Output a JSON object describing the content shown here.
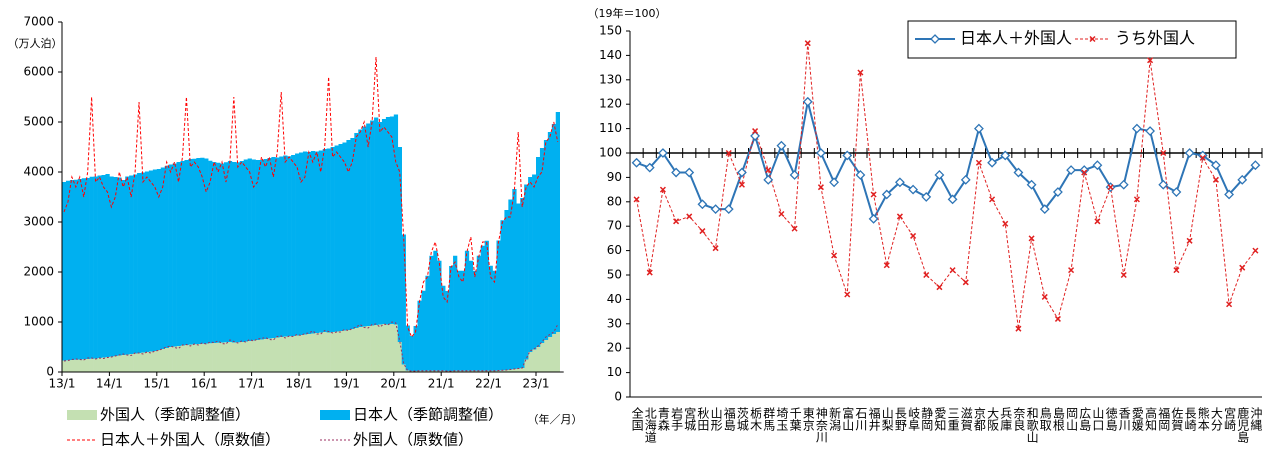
{
  "chart_data": [
    {
      "type": "bar",
      "y_unit": "（万人泊）",
      "x_label": "（年／月）",
      "ylim": [
        0,
        7000
      ],
      "yticks": [
        0,
        1000,
        2000,
        3000,
        4000,
        5000,
        6000,
        7000
      ],
      "categories": [
        "13/1",
        null,
        null,
        null,
        null,
        null,
        null,
        null,
        null,
        null,
        null,
        null,
        "14/1",
        null,
        null,
        null,
        null,
        null,
        null,
        null,
        null,
        null,
        null,
        null,
        "15/1",
        null,
        null,
        null,
        null,
        null,
        null,
        null,
        null,
        null,
        null,
        null,
        "16/1",
        null,
        null,
        null,
        null,
        null,
        null,
        null,
        null,
        null,
        null,
        null,
        "17/1",
        null,
        null,
        null,
        null,
        null,
        null,
        null,
        null,
        null,
        null,
        null,
        "18/1",
        null,
        null,
        null,
        null,
        null,
        null,
        null,
        null,
        null,
        null,
        null,
        "19/1",
        null,
        null,
        null,
        null,
        null,
        null,
        null,
        null,
        null,
        null,
        null,
        "20/1",
        null,
        null,
        null,
        null,
        null,
        null,
        null,
        null,
        null,
        null,
        null,
        "21/1",
        null,
        null,
        null,
        null,
        null,
        null,
        null,
        null,
        null,
        null,
        null,
        "22/1",
        null,
        null,
        null,
        null,
        null,
        null,
        null,
        null,
        null,
        null,
        null,
        "23/1",
        null,
        null,
        null,
        null,
        null
      ],
      "series": [
        {
          "name": "外国人（季節調整値）",
          "kind": "bar",
          "color": "#c4e0b2",
          "values": [
            230,
            235,
            240,
            245,
            250,
            255,
            260,
            265,
            270,
            280,
            290,
            300,
            310,
            320,
            330,
            340,
            350,
            360,
            370,
            380,
            390,
            400,
            410,
            420,
            440,
            460,
            480,
            500,
            510,
            520,
            530,
            540,
            550,
            555,
            560,
            565,
            570,
            575,
            580,
            585,
            590,
            595,
            600,
            590,
            595,
            600,
            610,
            620,
            630,
            640,
            650,
            660,
            670,
            680,
            690,
            700,
            710,
            715,
            720,
            730,
            740,
            750,
            760,
            770,
            780,
            790,
            800,
            790,
            800,
            810,
            820,
            830,
            840,
            860,
            880,
            900,
            910,
            920,
            930,
            940,
            950,
            960,
            950,
            960,
            950,
            600,
            150,
            30,
            20,
            20,
            25,
            25,
            25,
            25,
            25,
            25,
            25,
            20,
            20,
            25,
            25,
            25,
            25,
            25,
            25,
            25,
            25,
            25,
            25,
            25,
            30,
            35,
            40,
            50,
            60,
            70,
            80,
            250,
            400,
            450,
            500,
            580,
            640,
            700,
            760,
            800
          ]
        },
        {
          "name": "日本人（季節調整値）",
          "kind": "bar",
          "color": "#00b0f0",
          "values": [
            3570,
            3590,
            3600,
            3600,
            3610,
            3620,
            3620,
            3640,
            3640,
            3650,
            3650,
            3660,
            3600,
            3580,
            3560,
            3500,
            3560,
            3570,
            3580,
            3600,
            3600,
            3610,
            3620,
            3630,
            3620,
            3630,
            3640,
            3650,
            3660,
            3680,
            3690,
            3700,
            3710,
            3710,
            3720,
            3720,
            3700,
            3650,
            3620,
            3600,
            3580,
            3600,
            3620,
            3610,
            3600,
            3620,
            3640,
            3650,
            3620,
            3600,
            3590,
            3600,
            3610,
            3620,
            3600,
            3610,
            3620,
            3600,
            3620,
            3640,
            3650,
            3660,
            3640,
            3650,
            3630,
            3640,
            3660,
            3680,
            3700,
            3720,
            3740,
            3760,
            3800,
            3820,
            3900,
            3950,
            4000,
            4050,
            4100,
            4150,
            4050,
            4100,
            4150,
            4150,
            4200,
            3900,
            2600,
            900,
            700,
            900,
            1400,
            1600,
            1900,
            2300,
            2400,
            2200,
            1700,
            1600,
            2100,
            2300,
            2000,
            2000,
            2400,
            2200,
            2000,
            2300,
            2500,
            2600,
            2100,
            2000,
            2600,
            3000,
            3200,
            3400,
            3600,
            3300,
            3400,
            3500,
            3500,
            3500,
            3800,
            3900,
            4000,
            4100,
            4200,
            4400
          ]
        },
        {
          "name": "日本人＋外国人（原数値）",
          "kind": "line",
          "color": "#ff0000",
          "dash": "3,2",
          "values": [
            3200,
            3400,
            3900,
            3700,
            3900,
            3500,
            4000,
            5500,
            3800,
            3900,
            3700,
            3600,
            3300,
            3500,
            4000,
            3700,
            3900,
            3500,
            4000,
            5400,
            3800,
            3900,
            3800,
            3700,
            3500,
            3700,
            4200,
            4000,
            4200,
            3800,
            4300,
            5500,
            4100,
            4200,
            4100,
            3900,
            3600,
            3800,
            4200,
            4000,
            4200,
            3800,
            4200,
            5500,
            4100,
            4200,
            4100,
            4000,
            3700,
            3800,
            4300,
            4100,
            4300,
            3900,
            4400,
            5600,
            4200,
            4300,
            4200,
            4100,
            3800,
            3900,
            4400,
            4200,
            4400,
            4000,
            4500,
            5900,
            4300,
            4400,
            4300,
            4200,
            4000,
            4200,
            4700,
            4800,
            5000,
            4500,
            5000,
            6300,
            4800,
            4900,
            4800,
            4700,
            4200,
            4000,
            2700,
            900,
            700,
            800,
            1400,
            1800,
            1900,
            2400,
            2600,
            2200,
            1500,
            1400,
            2100,
            2200,
            1900,
            1800,
            2400,
            2700,
            1900,
            2300,
            2600,
            2600,
            1900,
            1800,
            2600,
            3000,
            3100,
            3100,
            3600,
            4800,
            3300,
            3700,
            3800,
            3700,
            3900,
            4000,
            4600,
            4700,
            5000,
            4600
          ]
        },
        {
          "name": "外国人（原数値）",
          "kind": "line",
          "color": "#9b2d5f",
          "dash": "2,2",
          "values": [
            220,
            230,
            250,
            260,
            250,
            240,
            280,
            280,
            260,
            280,
            270,
            290,
            300,
            320,
            340,
            360,
            340,
            330,
            380,
            380,
            360,
            400,
            380,
            420,
            430,
            470,
            500,
            520,
            490,
            470,
            540,
            550,
            520,
            560,
            540,
            580,
            560,
            600,
            590,
            620,
            570,
            560,
            640,
            610,
            580,
            620,
            600,
            650,
            620,
            660,
            670,
            690,
            650,
            640,
            710,
            720,
            680,
            720,
            710,
            750,
            730,
            770,
            780,
            820,
            760,
            760,
            830,
            810,
            780,
            800,
            800,
            850,
            830,
            870,
            900,
            950,
            890,
            880,
            950,
            960,
            900,
            960,
            940,
            1000,
            980,
            620,
            170,
            30,
            20,
            20,
            25,
            25,
            25,
            25,
            25,
            25,
            25,
            20,
            20,
            25,
            25,
            25,
            25,
            25,
            25,
            25,
            25,
            25,
            25,
            25,
            30,
            35,
            40,
            50,
            60,
            70,
            80,
            260,
            420,
            460,
            520,
            600,
            700,
            750,
            800,
            950
          ]
        }
      ]
    },
    {
      "type": "line",
      "y_unit": "（19年＝100）",
      "ylim": [
        0,
        150
      ],
      "yticks": [
        0,
        10,
        20,
        30,
        40,
        50,
        60,
        70,
        80,
        90,
        100,
        110,
        120,
        130,
        140,
        150
      ],
      "reference_line": 100,
      "legend": "top-right",
      "categories": [
        "全国",
        "北海道",
        "青森",
        "岩手",
        "宮城",
        "秋田",
        "山形",
        "福島",
        "茨城",
        "栃木",
        "群馬",
        "埼玉",
        "千葉",
        "東京",
        "神奈川",
        "新潟",
        "富山",
        "石川",
        "福井",
        "山梨",
        "長野",
        "岐阜",
        "静岡",
        "愛知",
        "三重",
        "滋賀",
        "京都",
        "大阪",
        "兵庫",
        "奈良",
        "和歌山",
        "鳥取",
        "島根",
        "岡山",
        "広島",
        "山口",
        "徳島",
        "香川",
        "愛媛",
        "高知",
        "福岡",
        "佐賀",
        "長崎",
        "熊本",
        "大分",
        "宮崎",
        "鹿児島",
        "沖縄"
      ],
      "series": [
        {
          "name": "日本人＋外国人",
          "color": "#2e75b6",
          "marker": "diamond",
          "values": [
            96,
            94,
            100,
            92,
            92,
            79,
            77,
            77,
            92,
            107,
            89,
            103,
            91,
            121,
            100,
            88,
            99,
            91,
            73,
            83,
            88,
            85,
            82,
            91,
            81,
            89,
            110,
            96,
            99,
            92,
            87,
            77,
            84,
            93,
            93,
            95,
            86,
            87,
            110,
            109,
            87,
            84,
            100,
            99,
            95,
            83,
            89,
            95
          ]
        },
        {
          "name": "うち外国人",
          "color": "#e02020",
          "marker": "x",
          "dash": "3,2",
          "values": [
            81,
            51,
            85,
            72,
            74,
            68,
            61,
            100,
            87,
            109,
            93,
            75,
            69,
            145,
            86,
            58,
            42,
            133,
            83,
            54,
            74,
            66,
            50,
            45,
            52,
            47,
            96,
            81,
            71,
            28,
            65,
            41,
            32,
            52,
            92,
            72,
            86,
            50,
            81,
            138,
            100,
            52,
            64,
            98,
            89,
            38,
            53,
            60
          ]
        }
      ]
    }
  ]
}
